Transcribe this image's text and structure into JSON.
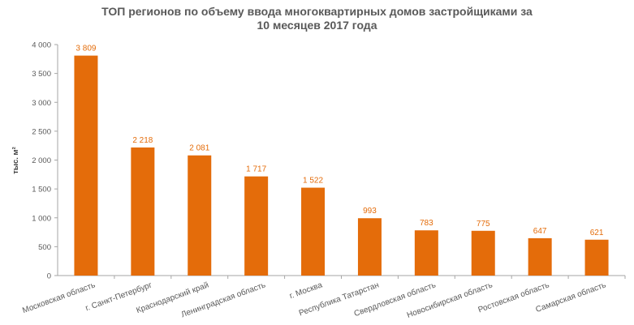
{
  "chart_data": {
    "type": "bar",
    "title_lines": [
      "ТОП регионов по объему ввода многоквартирных домов застройщиками за",
      "10 месяцев 2017 года"
    ],
    "ylabel": "тыс. м²",
    "ylim": [
      0,
      4000
    ],
    "yticks": [
      0,
      500,
      1000,
      1500,
      2000,
      2500,
      3000,
      3500,
      4000
    ],
    "ytick_labels": [
      "0",
      "500",
      "1 000",
      "1 500",
      "2 000",
      "2 500",
      "3 000",
      "3 500",
      "4 000"
    ],
    "categories": [
      "Московская область",
      "г. Санкт-Петербург",
      "Краснодарский край",
      "Ленинградская область",
      "г. Москва",
      "Республика Татарстан",
      "Свердловская область",
      "Новосибирская область",
      "Ростовская область",
      "Самарская область"
    ],
    "values": [
      3809,
      2218,
      2081,
      1717,
      1522,
      993,
      783,
      775,
      647,
      621
    ],
    "value_labels": [
      "3 809",
      "2 218",
      "2 081",
      "1 717",
      "1 522",
      "993",
      "783",
      "775",
      "647",
      "621"
    ],
    "bar_color": "#E46C0A",
    "value_label_color": "#E46C0A",
    "axis_color": "#A6A6A6",
    "text_color": "#595959",
    "grid": false,
    "legend": "none"
  }
}
